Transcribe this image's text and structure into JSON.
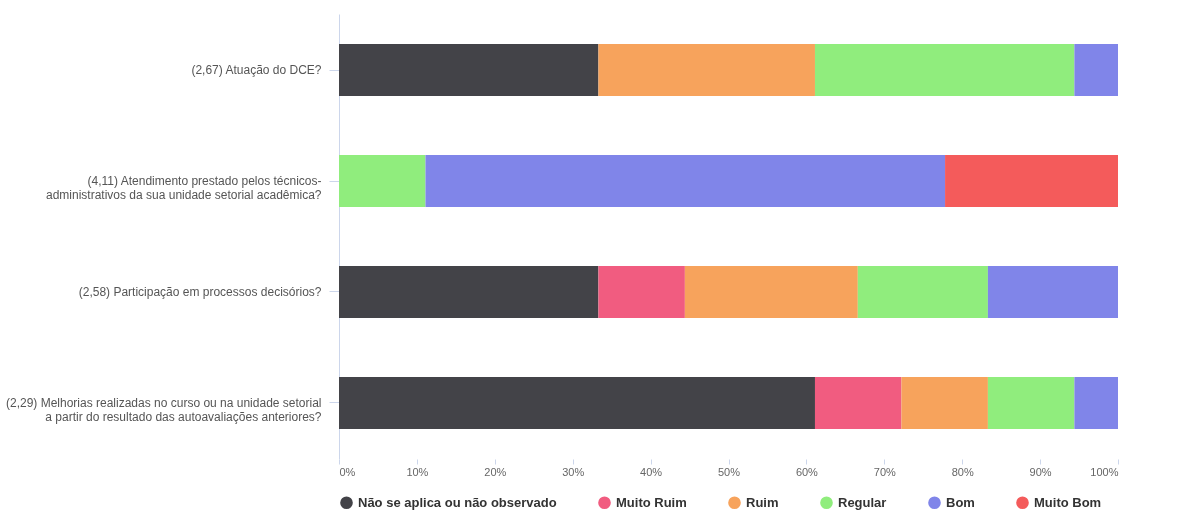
{
  "chart_data": {
    "type": "bar",
    "orientation": "horizontal",
    "stacked": true,
    "categories": [
      "(2,67) Atuação do DCE?",
      "(4,11) Atendimento prestado pelos técnicos-administrativos da sua unidade setorial acadêmica?",
      "(2,58) Participação em processos decisórios?",
      "(2,29) Melhorias realizadas no curso ou na unidade setorial a partir do resultado das autoavaliações anteriores?"
    ],
    "series": [
      {
        "name": "Não se aplica ou não observado",
        "color": "#434348",
        "values": [
          33.3,
          0,
          33.3,
          61.1
        ]
      },
      {
        "name": "Muito Ruim",
        "color": "#f15c80",
        "values": [
          0,
          0,
          11.1,
          11.1
        ]
      },
      {
        "name": "Ruim",
        "color": "#f7a35c",
        "values": [
          27.8,
          0,
          22.2,
          11.1
        ]
      },
      {
        "name": "Regular",
        "color": "#90ed7d",
        "values": [
          33.3,
          11.1,
          16.7,
          11.1
        ]
      },
      {
        "name": "Bom",
        "color": "#8085e9",
        "values": [
          5.6,
          66.7,
          16.7,
          5.6
        ]
      },
      {
        "name": "Muito Bom",
        "color": "#f45b5b",
        "values": [
          0,
          22.2,
          0,
          0
        ]
      }
    ],
    "xlim": [
      0,
      100
    ],
    "xticks": [
      {
        "value": 0,
        "label": "0%"
      },
      {
        "value": 10,
        "label": "10%"
      },
      {
        "value": 20,
        "label": "20%"
      },
      {
        "value": 30,
        "label": "30%"
      },
      {
        "value": 40,
        "label": "40%"
      },
      {
        "value": 50,
        "label": "50%"
      },
      {
        "value": 60,
        "label": "60%"
      },
      {
        "value": 70,
        "label": "70%"
      },
      {
        "value": 80,
        "label": "80%"
      },
      {
        "value": 90,
        "label": "90%"
      },
      {
        "value": 100,
        "label": "100%"
      }
    ],
    "grid": false,
    "legend": "bottom",
    "marker": "circle"
  }
}
